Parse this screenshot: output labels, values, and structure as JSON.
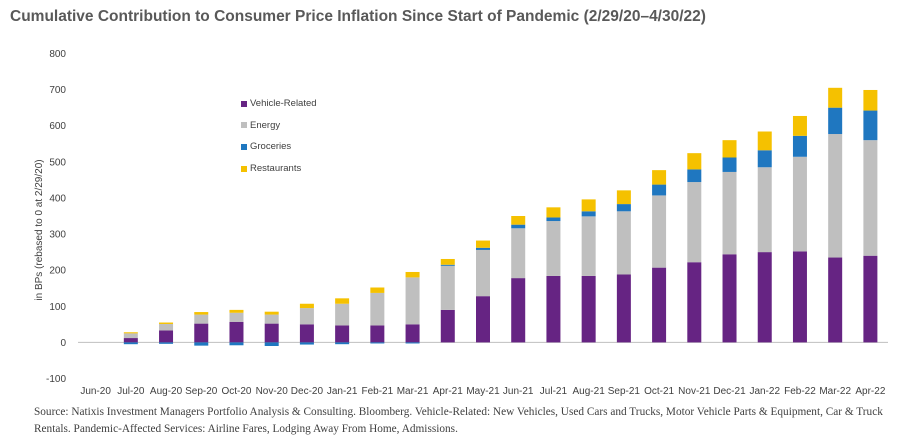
{
  "chart_data": {
    "type": "bar",
    "stacked": true,
    "title": "Cumulative Contribution to Consumer Price Inflation Since Start of Pandemic (2/29/20–4/30/22)",
    "ylabel": "in BPs (rebased to 0 at 2/29/20)",
    "xlabel": "",
    "ylim": [
      -100,
      800
    ],
    "yticks": [
      -100,
      0,
      100,
      200,
      300,
      400,
      500,
      600,
      700,
      800
    ],
    "grid": false,
    "legend_position": "upper-left",
    "categories": [
      "Jun-20",
      "Jul-20",
      "Aug-20",
      "Sep-20",
      "Oct-20",
      "Nov-20",
      "Dec-20",
      "Jan-21",
      "Feb-21",
      "Mar-21",
      "Apr-21",
      "May-21",
      "Jun-21",
      "Jul-21",
      "Aug-21",
      "Sep-21",
      "Oct-21",
      "Nov-21",
      "Dec-21",
      "Jan-22",
      "Feb-22",
      "Mar-22",
      "Apr-22"
    ],
    "series": [
      {
        "name": "Vehicle-Related",
        "color": "#662483",
        "values": [
          0,
          12,
          33,
          52,
          57,
          52,
          50,
          47,
          47,
          50,
          90,
          128,
          178,
          184,
          184,
          188,
          207,
          222,
          244,
          250,
          252,
          235,
          240
        ]
      },
      {
        "name": "Energy",
        "color": "#bfbfbf",
        "values": [
          0,
          13,
          18,
          25,
          25,
          25,
          45,
          60,
          90,
          130,
          122,
          128,
          138,
          152,
          165,
          175,
          200,
          222,
          228,
          235,
          262,
          342,
          320
        ]
      },
      {
        "name": "Groceries",
        "color": "#1f77c0",
        "values": [
          0,
          -5,
          -4,
          -9,
          -8,
          -10,
          -6,
          -5,
          -3,
          -3,
          3,
          6,
          10,
          10,
          14,
          20,
          30,
          35,
          40,
          47,
          58,
          73,
          82
        ]
      },
      {
        "name": "Restaurants",
        "color": "#f5c100",
        "values": [
          0,
          3,
          4,
          7,
          8,
          8,
          12,
          15,
          15,
          15,
          16,
          20,
          24,
          28,
          33,
          38,
          40,
          45,
          48,
          52,
          55,
          55,
          57
        ]
      }
    ]
  },
  "source_note": "Source: Natixis Investment Managers Portfolio Analysis & Consulting. Bloomberg. Vehicle-Related: New Vehicles, Used Cars and Trucks, Motor Vehicle Parts & Equipment, Car & Truck Rentals. Pandemic-Affected Services: Airline Fares, Lodging Away From Home, Admissions."
}
